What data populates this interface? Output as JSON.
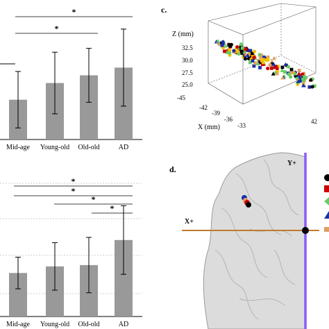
{
  "chart_data": [
    {
      "type": "bar",
      "categories": [
        "Mid-age",
        "Young-old",
        "Old-old",
        "AD"
      ],
      "values": [
        0.31,
        0.44,
        0.5,
        0.56
      ],
      "error": [
        0.22,
        0.24,
        0.21,
        0.3
      ],
      "ylim": [
        0,
        1
      ],
      "significance": [
        {
          "from": "Mid-age",
          "to": "AD",
          "label": "*"
        },
        {
          "from": "Mid-age",
          "to": "Old-old",
          "label": "*"
        }
      ]
    },
    {
      "type": "bar",
      "categories": [
        "Mid-age",
        "Young-old",
        "Old-old",
        "AD"
      ],
      "values": [
        0.33,
        0.38,
        0.39,
        0.58
      ],
      "error": [
        0.12,
        0.18,
        0.21,
        0.26
      ],
      "ylim": [
        0,
        1
      ],
      "significance": [
        {
          "from": "Mid-age",
          "to": "AD",
          "label": "*"
        },
        {
          "from": "Young-old",
          "to": "AD",
          "label": "*"
        },
        {
          "from": "Old-old",
          "to": "AD",
          "label": "*"
        },
        {
          "from": "AD",
          "to": "AD",
          "label": "*"
        }
      ]
    },
    {
      "type": "scatter",
      "panel": "c.",
      "zlabel": "Z (mm)",
      "xlabel": "X (mm)",
      "z_ticks": [
        "32.5",
        "30.0",
        "27.5",
        "25.0"
      ],
      "x_ticks": [
        "-42",
        "-39",
        "-36",
        "-33"
      ],
      "y_ticks": [
        "-45",
        "42"
      ]
    }
  ],
  "panel_d": {
    "label": "d.",
    "y_axis_label": "Y+",
    "x_axis_label": "X+",
    "legend_colors": [
      "#000000",
      "#cc0000",
      "#66cc66",
      "#1a2faa",
      "#e0a060"
    ]
  },
  "colors": {
    "bar": "#999999",
    "y_axis_line": "#8b5cf6",
    "x_axis_line": "#c07a30"
  }
}
